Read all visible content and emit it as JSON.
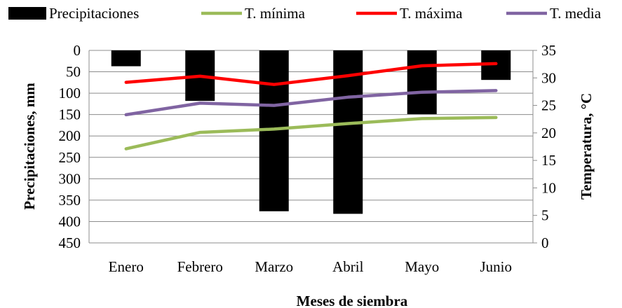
{
  "chart_data": {
    "type": "bar+line",
    "categories": [
      "Enero",
      "Febrero",
      "Marzo",
      "Abril",
      "Mayo",
      "Junio"
    ],
    "bars": {
      "name": "Precipitaciones",
      "axis": "left",
      "values": [
        37,
        118,
        376,
        382,
        149,
        69
      ],
      "color": "#000000"
    },
    "series": [
      {
        "key": "tmin",
        "name": "T. mínima",
        "axis": "right",
        "color": "#9bbb59",
        "values": [
          17.1,
          20.1,
          20.7,
          21.7,
          22.6,
          22.8
        ]
      },
      {
        "key": "tmax",
        "name": "T. máxima",
        "axis": "right",
        "color": "#ff0000",
        "values": [
          29.2,
          30.3,
          28.8,
          30.4,
          32.2,
          32.6
        ]
      },
      {
        "key": "tmed",
        "name": "T. media",
        "axis": "right",
        "color": "#8064a2",
        "values": [
          23.3,
          25.4,
          25.0,
          26.5,
          27.4,
          27.7
        ]
      }
    ],
    "y_left": {
      "label": "Precipitaciones, mm",
      "range": [
        0,
        450
      ],
      "inverted": true,
      "ticks": [
        "0",
        "50",
        "100",
        "150",
        "200",
        "250",
        "300",
        "350",
        "400",
        "450"
      ]
    },
    "y_right": {
      "label": "Temperatura, °C",
      "range": [
        0,
        35
      ],
      "ticks": [
        "0",
        "5",
        "10",
        "15",
        "20",
        "25",
        "30",
        "35"
      ]
    },
    "xlabel": "Meses de siembra",
    "grid": true,
    "legend": "top"
  }
}
